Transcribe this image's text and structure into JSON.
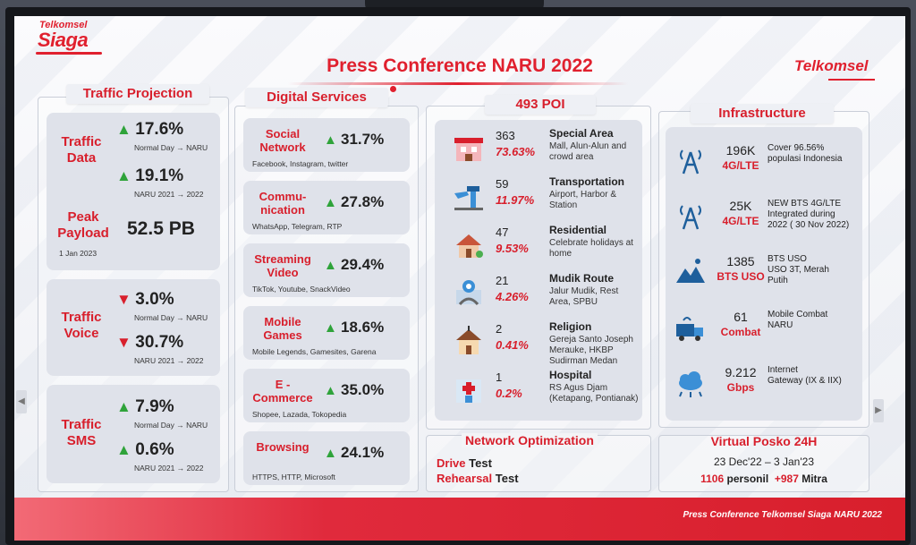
{
  "header": {
    "title": "Press Conference NARU 2022",
    "logo_left_top": "Telkomsel",
    "logo_left_main": "Siaga",
    "logo_right": "Telkomsel"
  },
  "traffic": {
    "title": "Traffic Projection",
    "data_label": "Traffic\nData",
    "data_v1": "17.6%",
    "data_s1": "Normal Day → NARU",
    "data_v2": "19.1%",
    "data_s2": "NARU 2021 → 2022",
    "peak_label": "Peak\nPayload",
    "peak_value": "52.5 PB",
    "peak_date": "1 Jan 2023",
    "voice_label": "Traffic\nVoice",
    "voice_v1": "3.0%",
    "voice_s1": "Normal Day → NARU",
    "voice_v2": "30.7%",
    "voice_s2": "NARU 2021 → 2022",
    "sms_label": "Traffic\nSMS",
    "sms_v1": "7.9%",
    "sms_s1": "Normal Day → NARU",
    "sms_v2": "0.6%",
    "sms_s2": "NARU 2021 → 2022"
  },
  "digital": {
    "title": "Digital Services",
    "items": [
      {
        "name": "Social\nNetwork",
        "value": "31.7%",
        "desc": "Facebook, Instagram, twitter"
      },
      {
        "name": "Commu-\nnication",
        "value": "27.8%",
        "desc": "WhatsApp, Telegram, RTP"
      },
      {
        "name": "Streaming\nVideo",
        "value": "29.4%",
        "desc": "TikTok, Youtube, SnackVideo"
      },
      {
        "name": "Mobile\nGames",
        "value": "18.6%",
        "desc": "Mobile Legends, Gamesites, Garena"
      },
      {
        "name": "E -\nCommerce",
        "value": "35.0%",
        "desc": "Shopee, Lazada, Tokopedia"
      },
      {
        "name": "Browsing",
        "value": "24.1%",
        "desc": "HTTPS, HTTP, Microsoft"
      }
    ]
  },
  "poi": {
    "title": "493 POI",
    "items": [
      {
        "count": "363",
        "pct": "73.63%",
        "name": "Special Area",
        "desc": "Mall, Alun-Alun and\ncrowd area",
        "icon": "mall-icon"
      },
      {
        "count": "59",
        "pct": "11.97%",
        "name": "Transportation",
        "desc": "Airport, Harbor &\nStation",
        "icon": "airport-icon"
      },
      {
        "count": "47",
        "pct": "9.53%",
        "name": "Residential",
        "desc": "Celebrate holidays at\nhome",
        "icon": "house-icon"
      },
      {
        "count": "21",
        "pct": "4.26%",
        "name": "Mudik Route",
        "desc": "Jalur Mudik, Rest\nArea, SPBU",
        "icon": "route-icon"
      },
      {
        "count": "2",
        "pct": "0.41%",
        "name": "Religion",
        "desc": "Gereja Santo Joseph\nMerauke, HKBP\nSudirman Medan",
        "icon": "church-icon"
      },
      {
        "count": "1",
        "pct": "0.2%",
        "name": "Hospital",
        "desc": "RS Agus Djam\n(Ketapang, Pontianak)",
        "icon": "hospital-icon"
      }
    ]
  },
  "infra": {
    "title": "Infrastructure",
    "items": [
      {
        "value": "196K",
        "unit": "4G/LTE",
        "desc": "Cover 96.56%\npopulasi Indonesia",
        "icon": "tower-icon"
      },
      {
        "value": "25K",
        "unit": "4G/LTE",
        "desc": "NEW BTS 4G/LTE\nIntegrated during\n2022 ( 30 Nov 2022)",
        "icon": "tower-icon"
      },
      {
        "value": "1385",
        "unit": "BTS USO",
        "desc": "BTS USO\nUSO 3T, Merah\nPutih",
        "icon": "mountain-icon"
      },
      {
        "value": "61",
        "unit": "Combat",
        "desc": "Mobile Combat\nNARU",
        "icon": "truck-icon"
      },
      {
        "value": "9.212",
        "unit": "Gbps",
        "desc": "Internet\nGateway (IX & IIX)",
        "icon": "cloud-icon"
      }
    ]
  },
  "network": {
    "title": "Network Optimization",
    "l1a": "Drive",
    "l1b": "Test",
    "l2a": "Rehearsal",
    "l2b": "Test"
  },
  "posko": {
    "title": "Virtual Posko 24H",
    "dates": "23 Dec'22 – 3 Jan'23",
    "personil_n": "1106",
    "personil_l": "personil",
    "mitra_n": "+987",
    "mitra_l": "Mitra"
  },
  "footer": {
    "text": "Press Conference Telkomsel Siaga NARU 2022"
  },
  "colors": {
    "accent": "#d81f2c",
    "up": "#2fa33a"
  }
}
